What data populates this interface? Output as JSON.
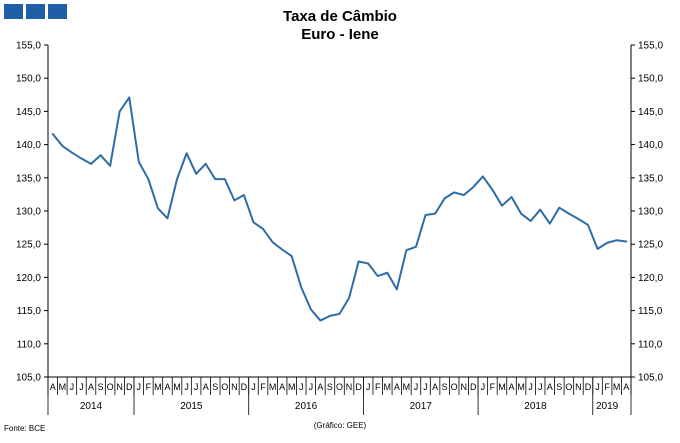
{
  "chart_data": {
    "type": "line",
    "title": "Taxa de Câmbio",
    "subtitle": "Euro - Iene",
    "ylim": [
      105,
      155
    ],
    "yticks": [
      "105,0",
      "110,0",
      "115,0",
      "120,0",
      "125,0",
      "130,0",
      "135,0",
      "140,0",
      "145,0",
      "150,0",
      "155,0"
    ],
    "year_labels": [
      {
        "year": "2014",
        "start": 0,
        "end": 9
      },
      {
        "year": "2015",
        "start": 9,
        "end": 21
      },
      {
        "year": "2016",
        "start": 21,
        "end": 33
      },
      {
        "year": "2017",
        "start": 33,
        "end": 45
      },
      {
        "year": "2018",
        "start": 45,
        "end": 57
      },
      {
        "year": "2019",
        "start": 57,
        "end": 60
      }
    ],
    "month_labels": [
      "A",
      "M",
      "J",
      "J",
      "A",
      "S",
      "O",
      "N",
      "D",
      "J",
      "F",
      "M",
      "A",
      "M",
      "J",
      "J",
      "A",
      "S",
      "O",
      "N",
      "D",
      "J",
      "F",
      "M",
      "A",
      "M",
      "J",
      "J",
      "A",
      "S",
      "O",
      "N",
      "D",
      "J",
      "F",
      "M",
      "A",
      "M",
      "J",
      "J",
      "A",
      "S",
      "O",
      "N",
      "D",
      "J",
      "F",
      "M",
      "A",
      "M",
      "J",
      "J",
      "A",
      "S",
      "O",
      "N",
      "D",
      "J",
      "F",
      "M",
      "A"
    ],
    "series": [
      {
        "color": "#2e6ca8",
        "values": [
          141.6,
          139.8,
          138.8,
          137.9,
          137.1,
          138.4,
          136.8,
          145.0,
          147.1,
          137.4,
          134.8,
          130.4,
          128.9,
          134.8,
          138.7,
          135.6,
          137.1,
          134.8,
          134.8,
          131.6,
          132.4,
          128.3,
          127.3,
          125.3,
          124.2,
          123.2,
          118.5,
          115.2,
          113.5,
          114.2,
          114.5,
          116.9,
          122.4,
          122.1,
          120.2,
          120.7,
          118.2,
          124.1,
          124.6,
          129.4,
          129.6,
          131.9,
          132.8,
          132.4,
          133.6,
          135.2,
          133.2,
          130.8,
          132.1,
          129.6,
          128.5,
          130.2,
          128.1,
          130.5,
          129.6,
          128.8,
          127.9,
          124.3,
          125.2,
          125.6,
          125.4
        ]
      }
    ]
  },
  "footer": {
    "source": "Fonte: BCE",
    "credit": "(Gráfico: GEE)"
  },
  "logo_icon": "gee-logo-squares"
}
